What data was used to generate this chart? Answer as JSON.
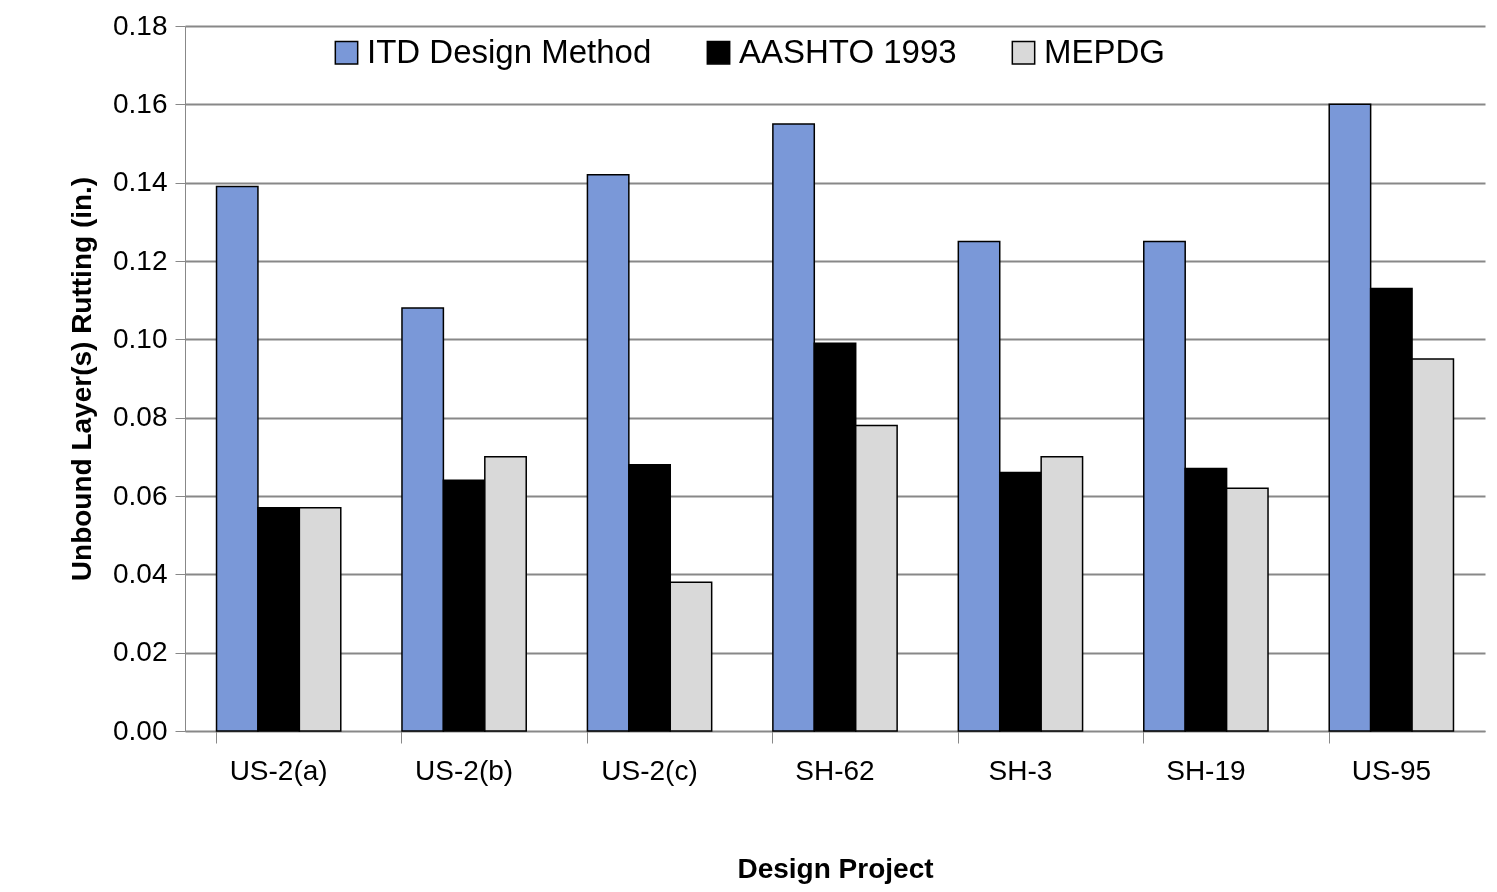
{
  "chart_data": {
    "type": "bar",
    "xlabel": "Design Project",
    "ylabel": "Unbound Layer(s) Rutting (in.)",
    "categories": [
      "US-2(a)",
      "US-2(b)",
      "US-2(c)",
      "SH-62",
      "SH-3",
      "SH-19",
      "US-95"
    ],
    "series": [
      {
        "name": "ITD Design Method",
        "color": "#7a98d8",
        "values": [
          0.139,
          0.108,
          0.142,
          0.155,
          0.125,
          0.125,
          0.16
        ]
      },
      {
        "name": "AASHTO 1993",
        "color": "#000000",
        "values": [
          0.057,
          0.064,
          0.068,
          0.099,
          0.066,
          0.067,
          0.113
        ]
      },
      {
        "name": "MEPDG",
        "color": "#d9d9d9",
        "values": [
          0.057,
          0.07,
          0.038,
          0.078,
          0.07,
          0.062,
          0.095
        ]
      }
    ],
    "ylim": [
      0,
      0.18
    ],
    "yticks": [
      {
        "value": 0,
        "label": "0.00"
      },
      {
        "value": 0.02,
        "label": "0.02"
      },
      {
        "value": 0.04,
        "label": "0.04"
      },
      {
        "value": 0.06,
        "label": "0.06"
      },
      {
        "value": 0.08,
        "label": "0.08"
      },
      {
        "value": 0.1,
        "label": "0.10"
      },
      {
        "value": 0.12,
        "label": "0.12"
      },
      {
        "value": 0.14,
        "label": "0.14"
      },
      {
        "value": 0.16,
        "label": "0.16"
      },
      {
        "value": 0.18,
        "label": "0.18"
      }
    ],
    "grid": "y",
    "legend": "top"
  }
}
